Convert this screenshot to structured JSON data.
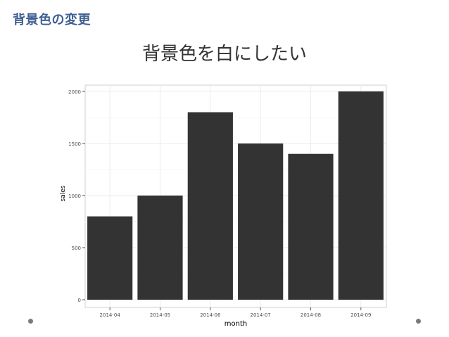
{
  "slide": {
    "heading": "背景色の変更",
    "title": "背景色を白にしたい"
  },
  "chart_data": {
    "type": "bar",
    "categories": [
      "2014-04",
      "2014-05",
      "2014-06",
      "2014-07",
      "2014-08",
      "2014-09"
    ],
    "values": [
      800,
      1000,
      1800,
      1500,
      1400,
      2000
    ],
    "xlabel": "month",
    "ylabel": "sales",
    "ylim": [
      0,
      2060
    ],
    "yticks": [
      0,
      500,
      1000,
      1500,
      2000
    ],
    "grid": true,
    "legend": "none",
    "bar_color": "#333333",
    "panel_background": "#ffffff",
    "grid_color": "#ebebeb"
  }
}
